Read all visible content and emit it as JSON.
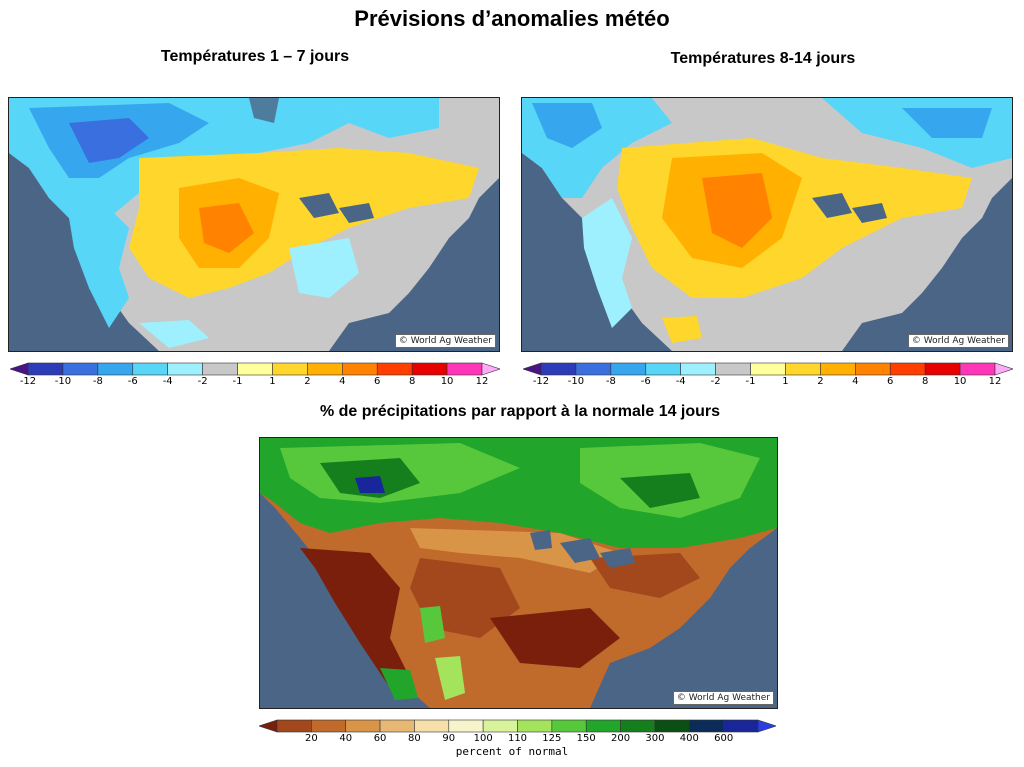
{
  "title": "Prévisions d’anomalies météo",
  "panels": {
    "temp_1_7": {
      "subtitle": "Températures 1 – 7 jours",
      "credit": "© World Ag Weather"
    },
    "temp_8_14": {
      "subtitle": "Températures 8-14 jours",
      "credit": "© World Ag Weather"
    },
    "precip_14": {
      "subtitle": "% de précipitations par rapport à la normale 14 jours",
      "credit": "© World Ag Weather"
    }
  },
  "temp_legend": {
    "colors": [
      "#4a1486",
      "#2c3bb8",
      "#3a6fe0",
      "#36a6ee",
      "#58d6f7",
      "#9ff0ff",
      "#c8c8c8",
      "#ffff9c",
      "#ffd62b",
      "#ffb000",
      "#ff8200",
      "#ff3e00",
      "#e60000",
      "#ff36b8",
      "#ffaaf8"
    ],
    "ticks": [
      "-12",
      "-10",
      "-8",
      "-6",
      "-4",
      "-2",
      "-1",
      "1",
      "2",
      "4",
      "6",
      "8",
      "10",
      "12"
    ]
  },
  "precip_legend": {
    "colors": [
      "#7a1f0c",
      "#a3471c",
      "#c06a2c",
      "#d89447",
      "#e7b874",
      "#f6dfa9",
      "#f7f4cc",
      "#d8f39b",
      "#a4e35c",
      "#57c83b",
      "#21a52a",
      "#167f1d",
      "#0c4f14",
      "#0b2c59",
      "#18269a",
      "#2b3ee6"
    ],
    "ticks": [
      "20",
      "40",
      "60",
      "80",
      "90",
      "100",
      "110",
      "125",
      "150",
      "200",
      "300",
      "400",
      "600"
    ],
    "caption": "percent of normal"
  }
}
